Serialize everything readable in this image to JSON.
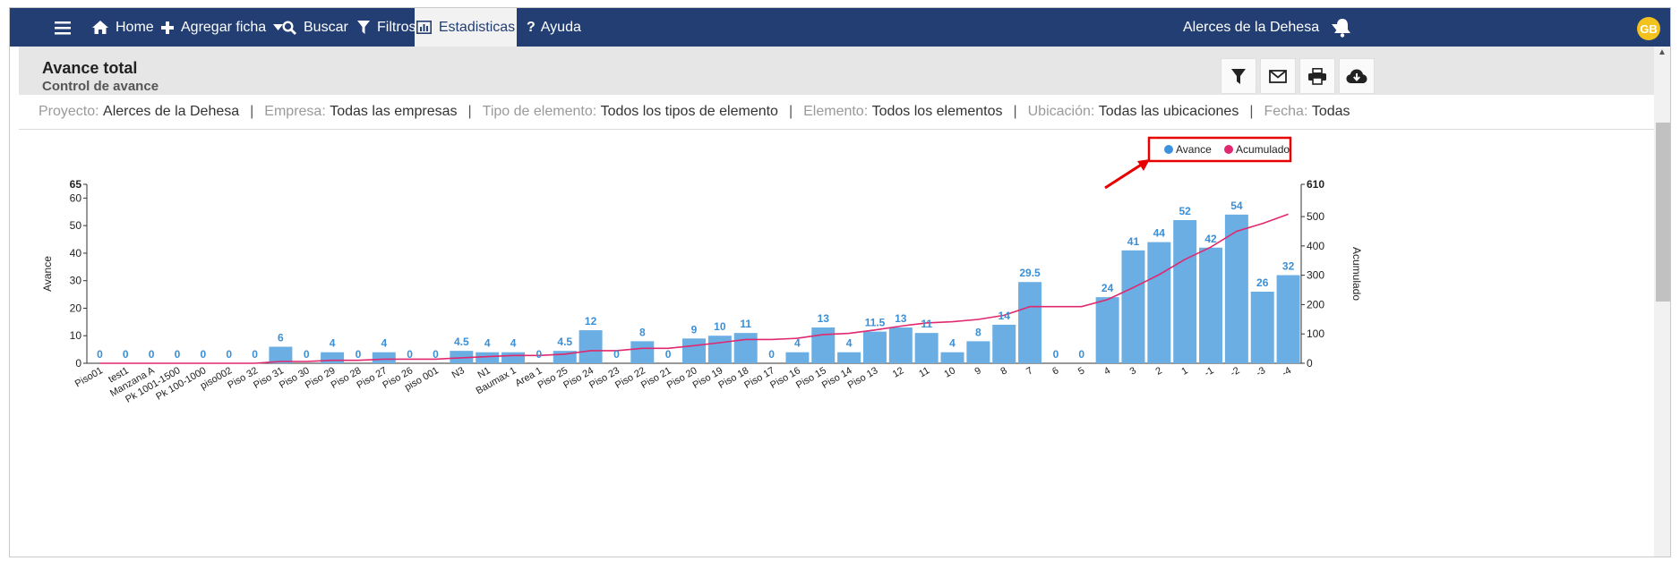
{
  "navbar": {
    "items": [
      {
        "label": "Home",
        "icon": "home-icon"
      },
      {
        "label": "Agregar ficha",
        "icon": "plus-icon"
      },
      {
        "label": "Buscar",
        "icon": "search-icon"
      },
      {
        "label": "Filtros",
        "icon": "filter-icon"
      },
      {
        "label": "Estadisticas",
        "icon": "bar-chart-icon"
      },
      {
        "label": "Ayuda",
        "icon": "question-icon"
      }
    ],
    "project": "Alerces de la Dehesa",
    "avatar": "GB",
    "colors": {
      "bar": "#233e72",
      "active_bg": "#f2f2f2",
      "avatar": "#f4c21c"
    }
  },
  "header": {
    "title": "Avance total",
    "subtitle": "Control de avance"
  },
  "filters": [
    {
      "label": "Proyecto:",
      "value": "Alerces de la Dehesa"
    },
    {
      "label": "Empresa:",
      "value": "Todas las empresas"
    },
    {
      "label": "Tipo de elemento:",
      "value": "Todos los tipos de elemento"
    },
    {
      "label": "Elemento:",
      "value": "Todos los elementos"
    },
    {
      "label": "Ubicación:",
      "value": "Todas las ubicaciones"
    },
    {
      "label": "Fecha:",
      "value": "Todas"
    }
  ],
  "chart_data": {
    "type": "bar",
    "categories": [
      "Piso01",
      "test1",
      "Manzana A",
      "Pk 1001-1500",
      "Pk 100-1000",
      "piso002",
      "Piso 32",
      "Piso 31",
      "Piso 30",
      "Piso 29",
      "Piso 28",
      "Piso 27",
      "Piso 26",
      "piso 001",
      "N3",
      "N1",
      "Baumax 1",
      "Area 1",
      "Piso 25",
      "Piso 24",
      "Piso 23",
      "Piso 22",
      "Piso 21",
      "Piso 20",
      "Piso 19",
      "Piso 18",
      "Piso 17",
      "Piso 16",
      "Piso 15",
      "Piso 14",
      "Piso 13",
      "12",
      "11",
      "10",
      "9",
      "8",
      "7",
      "6",
      "5",
      "4",
      "3",
      "2",
      "1",
      "-1",
      "-2",
      "-3",
      "-4"
    ],
    "series": [
      {
        "name": "Avance",
        "type": "bar",
        "axis": "left",
        "color": "#6aaee3",
        "values": [
          0,
          0,
          0,
          0,
          0,
          0,
          0,
          6,
          0,
          4,
          0,
          4,
          0,
          0,
          4.5,
          4,
          4,
          0,
          4.5,
          12,
          0,
          8,
          0,
          9,
          10,
          11,
          0,
          4,
          13,
          4,
          11.5,
          13,
          11,
          4,
          8,
          14,
          29.5,
          0,
          0,
          24,
          41,
          44,
          52,
          42,
          54,
          26,
          32
        ]
      },
      {
        "name": "Acumulado",
        "type": "line",
        "axis": "right",
        "color": "#e0286e",
        "values": [
          0,
          0,
          0,
          0,
          0,
          0,
          0,
          6,
          6,
          10,
          10,
          14,
          14,
          14,
          18.5,
          22.5,
          26.5,
          26.5,
          31,
          43,
          43,
          51,
          51,
          60,
          70,
          81,
          81,
          85,
          98,
          102,
          113.5,
          126.5,
          137.5,
          141.5,
          149.5,
          163.5,
          193,
          193,
          193,
          217,
          258,
          302,
          354,
          396,
          450,
          476,
          508
        ]
      }
    ],
    "ylabel": "Avance",
    "y2label": "Acumulado",
    "ylim": [
      0,
      65
    ],
    "y2lim": [
      0,
      610
    ],
    "yticks": [
      0,
      10,
      20,
      30,
      40,
      50,
      60,
      65
    ],
    "y2ticks": [
      0,
      100,
      200,
      300,
      400,
      500,
      610
    ],
    "legend": {
      "position": "top-right"
    }
  }
}
